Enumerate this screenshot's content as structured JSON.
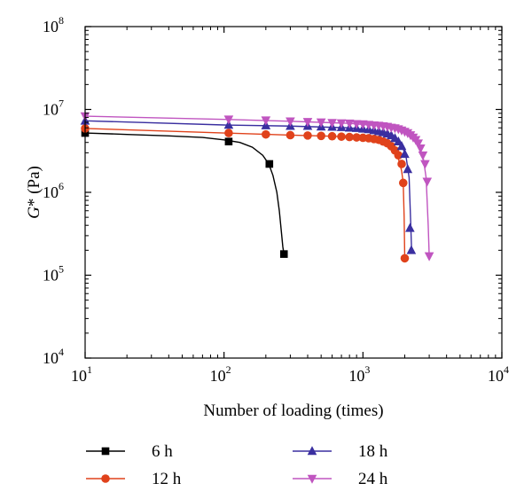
{
  "chart_data": {
    "type": "line",
    "xlabel": "Number of loading (times)",
    "ylabel_italic": "G",
    "ylabel_rest": "* (Pa)",
    "x_scale": "log",
    "y_scale": "log",
    "xlim": [
      10,
      10000
    ],
    "ylim": [
      10000,
      100000000
    ],
    "grid": false,
    "legend_position": "bottom, two columns",
    "x_ticks": [
      {
        "base": "10",
        "exp": "1",
        "value": 10
      },
      {
        "base": "10",
        "exp": "2",
        "value": 100
      },
      {
        "base": "10",
        "exp": "3",
        "value": 1000
      },
      {
        "base": "10",
        "exp": "4",
        "value": 10000
      }
    ],
    "y_ticks": [
      {
        "base": "10",
        "exp": "4",
        "value": 10000
      },
      {
        "base": "10",
        "exp": "5",
        "value": 100000
      },
      {
        "base": "10",
        "exp": "6",
        "value": 1000000
      },
      {
        "base": "10",
        "exp": "7",
        "value": 10000000
      },
      {
        "base": "10",
        "exp": "8",
        "value": 100000000
      }
    ],
    "series": [
      {
        "name": "6 h",
        "color": "#000000",
        "marker": "square",
        "line_x": [
          10,
          20,
          40,
          70,
          100,
          130,
          160,
          190,
          210,
          225,
          240,
          250,
          258,
          265,
          270
        ],
        "line_y": [
          5200000,
          5000000,
          4800000,
          4600000,
          4300000,
          4000000,
          3500000,
          2800000,
          2200000,
          1600000,
          1000000,
          600000,
          350000,
          220000,
          180000
        ],
        "marker_x": [
          10,
          108,
          212,
          270
        ],
        "marker_y": [
          5200000,
          4100000,
          2200000,
          180000
        ]
      },
      {
        "name": "12 h",
        "color": "#e0421b",
        "marker": "circle",
        "line_x": [
          10,
          100,
          300,
          600,
          900,
          1200,
          1400,
          1600,
          1750,
          1850,
          1900,
          1950,
          1980,
          2000
        ],
        "line_y": [
          5900000,
          5200000,
          4900000,
          4750000,
          4600000,
          4400000,
          4100000,
          3600000,
          2900000,
          2200000,
          1800000,
          1300000,
          500000,
          160000
        ],
        "marker_x": [
          10,
          108,
          200,
          300,
          400,
          500,
          600,
          700,
          800,
          900,
          1000,
          1100,
          1200,
          1300,
          1400,
          1500,
          1600,
          1700,
          1800,
          1900,
          1950,
          2000
        ],
        "marker_y": [
          5900000,
          5200000,
          5000000,
          4900000,
          4850000,
          4800000,
          4750000,
          4700000,
          4650000,
          4600000,
          4550000,
          4500000,
          4400000,
          4300000,
          4100000,
          3900000,
          3600000,
          3200000,
          2800000,
          2200000,
          1300000,
          160000
        ]
      },
      {
        "name": "18 h",
        "color": "#3a2fa0",
        "marker": "triangle-up",
        "line_x": [
          10,
          100,
          300,
          800,
          1200,
          1600,
          1900,
          2050,
          2150,
          2200,
          2240
        ],
        "line_y": [
          7300000,
          6500000,
          6300000,
          6000000,
          5600000,
          5000000,
          3800000,
          2600000,
          1500000,
          500000,
          200000
        ],
        "marker_x": [
          10,
          108,
          200,
          300,
          400,
          500,
          600,
          700,
          800,
          900,
          1000,
          1100,
          1200,
          1300,
          1400,
          1500,
          1600,
          1700,
          1800,
          1900,
          2000,
          2100,
          2180,
          2230
        ],
        "marker_y": [
          7300000,
          6500000,
          6400000,
          6300000,
          6300000,
          6200000,
          6150000,
          6100000,
          6000000,
          5950000,
          5850000,
          5750000,
          5600000,
          5450000,
          5300000,
          5100000,
          4850000,
          4500000,
          4100000,
          3600000,
          2900000,
          1900000,
          370000,
          200000
        ]
      },
      {
        "name": "24 h",
        "color": "#c055c0",
        "marker": "triangle-down",
        "line_x": [
          10,
          100,
          300,
          800,
          1400,
          2000,
          2400,
          2700,
          2850,
          2950,
          3000
        ],
        "line_y": [
          8300000,
          7600000,
          7200000,
          6800000,
          6300000,
          5400000,
          4300000,
          2800000,
          1500000,
          400000,
          170000
        ],
        "marker_x": [
          10,
          108,
          200,
          300,
          400,
          500,
          600,
          700,
          800,
          900,
          1000,
          1100,
          1200,
          1300,
          1400,
          1500,
          1600,
          1700,
          1800,
          1900,
          2000,
          2100,
          2200,
          2300,
          2400,
          2500,
          2600,
          2700,
          2800,
          2900,
          3000
        ],
        "marker_y": [
          8300000,
          7600000,
          7400000,
          7200000,
          7100000,
          7000000,
          6900000,
          6850000,
          6800000,
          6700000,
          6650000,
          6550000,
          6450000,
          6400000,
          6300000,
          6200000,
          6050000,
          5950000,
          5800000,
          5600000,
          5400000,
          5200000,
          4900000,
          4600000,
          4300000,
          3900000,
          3400000,
          2800000,
          2200000,
          1350000,
          170000
        ]
      }
    ]
  }
}
